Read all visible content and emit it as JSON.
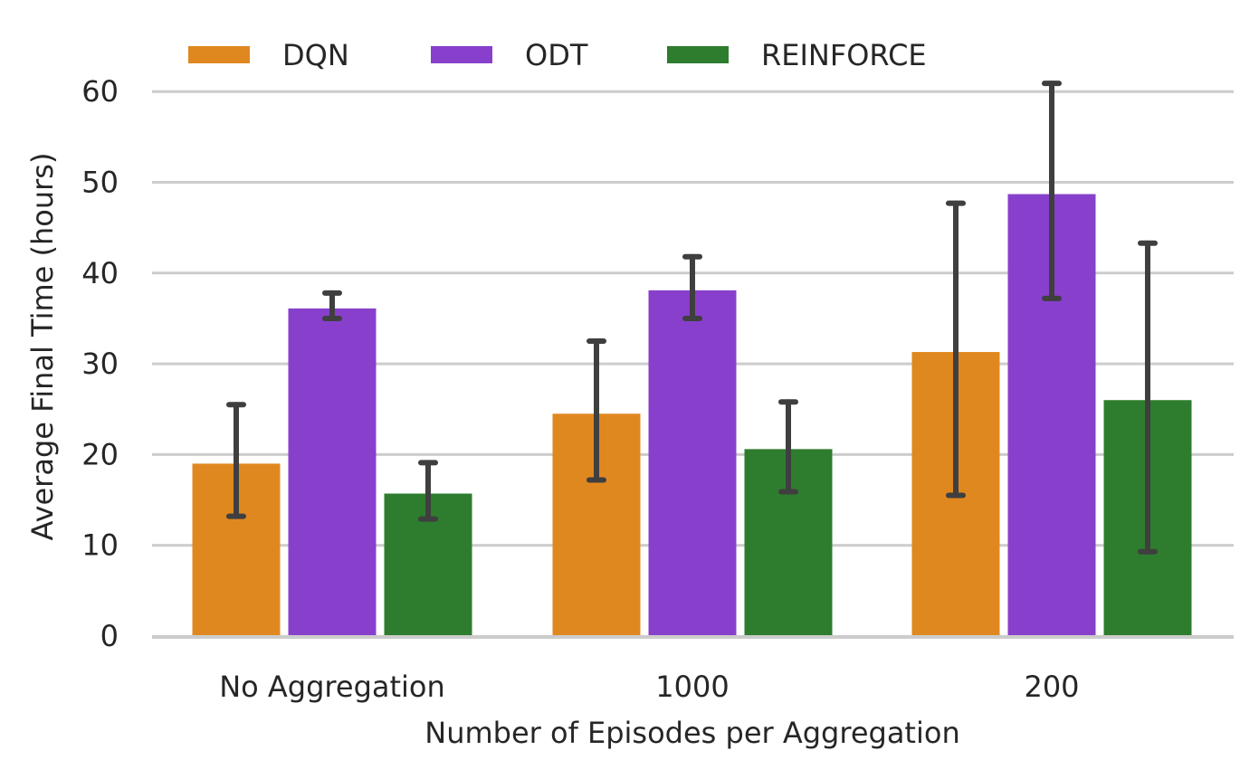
{
  "chart_data": {
    "type": "bar",
    "title": "",
    "xlabel": "Number of Episodes per Aggregation",
    "ylabel": "Average Final Time (hours)",
    "categories": [
      "No Aggregation",
      "1000",
      "200"
    ],
    "ylim": [
      0,
      64
    ],
    "yticks": [
      0,
      10,
      20,
      30,
      40,
      50,
      60
    ],
    "grid": "horizontal",
    "legend_position": "top-left",
    "series": [
      {
        "name": "DQN",
        "color": "#e08820",
        "values": [
          19.0,
          24.5,
          31.3
        ],
        "error_low": [
          13.2,
          17.2,
          15.5
        ],
        "error_high": [
          25.5,
          32.5,
          47.7
        ]
      },
      {
        "name": "ODT",
        "color": "#8840cc",
        "values": [
          36.1,
          38.1,
          48.7
        ],
        "error_low": [
          35.0,
          35.0,
          37.2
        ],
        "error_high": [
          37.8,
          41.8,
          60.9
        ]
      },
      {
        "name": "REINFORCE",
        "color": "#2e7d2e",
        "values": [
          15.7,
          20.6,
          26.0
        ],
        "error_low": [
          12.9,
          15.9,
          9.3
        ],
        "error_high": [
          19.1,
          25.8,
          43.3
        ]
      }
    ]
  }
}
